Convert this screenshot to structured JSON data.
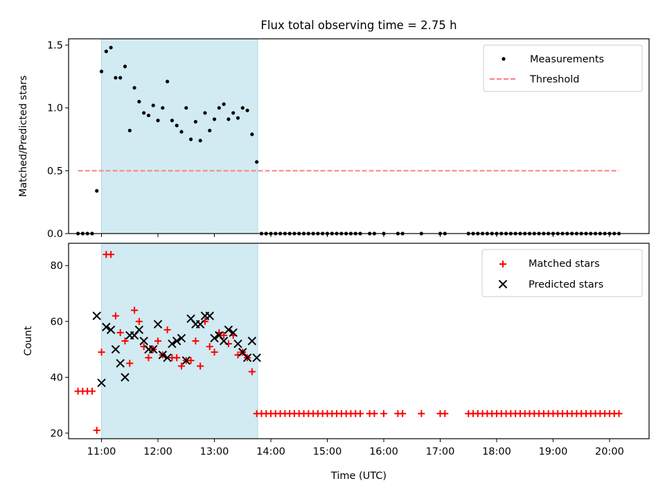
{
  "title": "Flux total observing time = 2.75 h",
  "colors": {
    "measure": "#000000",
    "threshold": "#ff7f7f",
    "matched": "#ff0000",
    "predicted": "#000000",
    "shade": "#add8e6"
  },
  "chart_data": [
    {
      "type": "scatter",
      "panel": "top",
      "title": "Flux total observing time = 2.75 h",
      "xlabel": "",
      "ylabel": "Matched/Predicted stars",
      "xlim": [
        "10:25",
        "20:42"
      ],
      "ylim": [
        0.0,
        1.55
      ],
      "yticks": [
        "0.0",
        "0.5",
        "1.0",
        "1.5"
      ],
      "shaded_interval": [
        "11:00",
        "13:46"
      ],
      "legend_position": "upper right",
      "legend": [
        "Measurements",
        "Threshold"
      ],
      "threshold": {
        "name": "Threshold",
        "value": 0.5,
        "x_range": [
          "10:35",
          "20:10"
        ]
      },
      "series": [
        {
          "name": "Measurements",
          "points": [
            [
              "10:35",
              0.0
            ],
            [
              "10:40",
              0.0
            ],
            [
              "10:45",
              0.0
            ],
            [
              "10:50",
              0.0
            ],
            [
              "10:55",
              0.34
            ],
            [
              "11:00",
              1.29
            ],
            [
              "11:05",
              1.45
            ],
            [
              "11:10",
              1.48
            ],
            [
              "11:15",
              1.24
            ],
            [
              "11:20",
              1.24
            ],
            [
              "11:25",
              1.33
            ],
            [
              "11:30",
              0.82
            ],
            [
              "11:35",
              1.16
            ],
            [
              "11:40",
              1.05
            ],
            [
              "11:45",
              0.96
            ],
            [
              "11:50",
              0.94
            ],
            [
              "11:55",
              1.02
            ],
            [
              "12:00",
              0.9
            ],
            [
              "12:05",
              1.0
            ],
            [
              "12:10",
              1.21
            ],
            [
              "12:15",
              0.9
            ],
            [
              "12:20",
              0.86
            ],
            [
              "12:25",
              0.81
            ],
            [
              "12:30",
              1.0
            ],
            [
              "12:35",
              0.75
            ],
            [
              "12:40",
              0.89
            ],
            [
              "12:45",
              0.74
            ],
            [
              "12:50",
              0.96
            ],
            [
              "12:55",
              0.82
            ],
            [
              "13:00",
              0.91
            ],
            [
              "13:05",
              1.0
            ],
            [
              "13:10",
              1.03
            ],
            [
              "13:15",
              0.91
            ],
            [
              "13:20",
              0.96
            ],
            [
              "13:25",
              0.92
            ],
            [
              "13:30",
              1.0
            ],
            [
              "13:35",
              0.98
            ],
            [
              "13:40",
              0.79
            ],
            [
              "13:45",
              0.57
            ],
            [
              "13:50",
              0.0
            ],
            [
              "13:55",
              0.0
            ],
            [
              "14:00",
              0.0
            ],
            [
              "14:05",
              0.0
            ],
            [
              "14:10",
              0.0
            ],
            [
              "14:15",
              0.0
            ],
            [
              "14:20",
              0.0
            ],
            [
              "14:25",
              0.0
            ],
            [
              "14:30",
              0.0
            ],
            [
              "14:35",
              0.0
            ],
            [
              "14:40",
              0.0
            ],
            [
              "14:45",
              0.0
            ],
            [
              "14:50",
              0.0
            ],
            [
              "14:55",
              0.0
            ],
            [
              "15:00",
              0.0
            ],
            [
              "15:05",
              0.0
            ],
            [
              "15:10",
              0.0
            ],
            [
              "15:15",
              0.0
            ],
            [
              "15:20",
              0.0
            ],
            [
              "15:25",
              0.0
            ],
            [
              "15:30",
              0.0
            ],
            [
              "15:35",
              0.0
            ],
            [
              "15:45",
              0.0
            ],
            [
              "15:50",
              0.0
            ],
            [
              "16:00",
              0.0
            ],
            [
              "16:15",
              0.0
            ],
            [
              "16:20",
              0.0
            ],
            [
              "16:40",
              0.0
            ],
            [
              "17:00",
              0.0
            ],
            [
              "17:05",
              0.0
            ],
            [
              "17:30",
              0.0
            ],
            [
              "17:35",
              0.0
            ],
            [
              "17:40",
              0.0
            ],
            [
              "17:45",
              0.0
            ],
            [
              "17:50",
              0.0
            ],
            [
              "17:55",
              0.0
            ],
            [
              "18:00",
              0.0
            ],
            [
              "18:05",
              0.0
            ],
            [
              "18:10",
              0.0
            ],
            [
              "18:15",
              0.0
            ],
            [
              "18:20",
              0.0
            ],
            [
              "18:25",
              0.0
            ],
            [
              "18:30",
              0.0
            ],
            [
              "18:35",
              0.0
            ],
            [
              "18:40",
              0.0
            ],
            [
              "18:45",
              0.0
            ],
            [
              "18:50",
              0.0
            ],
            [
              "18:55",
              0.0
            ],
            [
              "19:00",
              0.0
            ],
            [
              "19:05",
              0.0
            ],
            [
              "19:10",
              0.0
            ],
            [
              "19:15",
              0.0
            ],
            [
              "19:20",
              0.0
            ],
            [
              "19:25",
              0.0
            ],
            [
              "19:30",
              0.0
            ],
            [
              "19:35",
              0.0
            ],
            [
              "19:40",
              0.0
            ],
            [
              "19:45",
              0.0
            ],
            [
              "19:50",
              0.0
            ],
            [
              "19:55",
              0.0
            ],
            [
              "20:00",
              0.0
            ],
            [
              "20:05",
              0.0
            ],
            [
              "20:10",
              0.0
            ]
          ]
        }
      ]
    },
    {
      "type": "scatter",
      "panel": "bottom",
      "title": "",
      "xlabel": "Time (UTC)",
      "ylabel": "Count",
      "xlim": [
        "10:25",
        "20:42"
      ],
      "ylim": [
        18,
        88
      ],
      "yticks": [
        "20",
        "40",
        "60",
        "80"
      ],
      "xticks": [
        "11:00",
        "12:00",
        "13:00",
        "14:00",
        "15:00",
        "16:00",
        "17:00",
        "18:00",
        "19:00",
        "20:00"
      ],
      "shaded_interval": [
        "11:00",
        "13:46"
      ],
      "legend_position": "upper right",
      "legend": [
        "Matched stars",
        "Predicted stars"
      ],
      "series": [
        {
          "name": "Matched stars",
          "marker": "+",
          "points": [
            [
              "10:35",
              35
            ],
            [
              "10:40",
              35
            ],
            [
              "10:45",
              35
            ],
            [
              "10:50",
              35
            ],
            [
              "10:55",
              21
            ],
            [
              "11:00",
              49
            ],
            [
              "11:05",
              84
            ],
            [
              "11:10",
              84
            ],
            [
              "11:15",
              62
            ],
            [
              "11:20",
              56
            ],
            [
              "11:25",
              53
            ],
            [
              "11:30",
              45
            ],
            [
              "11:35",
              64
            ],
            [
              "11:40",
              60
            ],
            [
              "11:45",
              51
            ],
            [
              "11:50",
              47
            ],
            [
              "11:55",
              50
            ],
            [
              "12:00",
              53
            ],
            [
              "12:05",
              48
            ],
            [
              "12:10",
              57
            ],
            [
              "12:15",
              47
            ],
            [
              "12:20",
              47
            ],
            [
              "12:25",
              44
            ],
            [
              "12:30",
              46
            ],
            [
              "12:35",
              46
            ],
            [
              "12:40",
              53
            ],
            [
              "12:45",
              44
            ],
            [
              "12:50",
              60
            ],
            [
              "12:55",
              51
            ],
            [
              "13:00",
              49
            ],
            [
              "13:05",
              56
            ],
            [
              "13:10",
              55
            ],
            [
              "13:15",
              52
            ],
            [
              "13:20",
              55
            ],
            [
              "13:25",
              48
            ],
            [
              "13:30",
              49
            ],
            [
              "13:35",
              47
            ],
            [
              "13:40",
              42
            ],
            [
              "13:45",
              27
            ],
            [
              "13:50",
              27
            ],
            [
              "13:55",
              27
            ],
            [
              "14:00",
              27
            ],
            [
              "14:05",
              27
            ],
            [
              "14:10",
              27
            ],
            [
              "14:15",
              27
            ],
            [
              "14:20",
              27
            ],
            [
              "14:25",
              27
            ],
            [
              "14:30",
              27
            ],
            [
              "14:35",
              27
            ],
            [
              "14:40",
              27
            ],
            [
              "14:45",
              27
            ],
            [
              "14:50",
              27
            ],
            [
              "14:55",
              27
            ],
            [
              "15:00",
              27
            ],
            [
              "15:05",
              27
            ],
            [
              "15:10",
              27
            ],
            [
              "15:15",
              27
            ],
            [
              "15:20",
              27
            ],
            [
              "15:25",
              27
            ],
            [
              "15:30",
              27
            ],
            [
              "15:35",
              27
            ],
            [
              "15:45",
              27
            ],
            [
              "15:50",
              27
            ],
            [
              "16:00",
              27
            ],
            [
              "16:15",
              27
            ],
            [
              "16:20",
              27
            ],
            [
              "16:40",
              27
            ],
            [
              "17:00",
              27
            ],
            [
              "17:05",
              27
            ],
            [
              "17:30",
              27
            ],
            [
              "17:35",
              27
            ],
            [
              "17:40",
              27
            ],
            [
              "17:45",
              27
            ],
            [
              "17:50",
              27
            ],
            [
              "17:55",
              27
            ],
            [
              "18:00",
              27
            ],
            [
              "18:05",
              27
            ],
            [
              "18:10",
              27
            ],
            [
              "18:15",
              27
            ],
            [
              "18:20",
              27
            ],
            [
              "18:25",
              27
            ],
            [
              "18:30",
              27
            ],
            [
              "18:35",
              27
            ],
            [
              "18:40",
              27
            ],
            [
              "18:45",
              27
            ],
            [
              "18:50",
              27
            ],
            [
              "18:55",
              27
            ],
            [
              "19:00",
              27
            ],
            [
              "19:05",
              27
            ],
            [
              "19:10",
              27
            ],
            [
              "19:15",
              27
            ],
            [
              "19:20",
              27
            ],
            [
              "19:25",
              27
            ],
            [
              "19:30",
              27
            ],
            [
              "19:35",
              27
            ],
            [
              "19:40",
              27
            ],
            [
              "19:45",
              27
            ],
            [
              "19:50",
              27
            ],
            [
              "19:55",
              27
            ],
            [
              "20:00",
              27
            ],
            [
              "20:05",
              27
            ],
            [
              "20:10",
              27
            ]
          ]
        },
        {
          "name": "Predicted stars",
          "marker": "x",
          "points": [
            [
              "10:55",
              62
            ],
            [
              "11:00",
              38
            ],
            [
              "11:05",
              58
            ],
            [
              "11:10",
              57
            ],
            [
              "11:15",
              50
            ],
            [
              "11:20",
              45
            ],
            [
              "11:25",
              40
            ],
            [
              "11:30",
              55
            ],
            [
              "11:35",
              55
            ],
            [
              "11:40",
              57
            ],
            [
              "11:45",
              53
            ],
            [
              "11:50",
              50
            ],
            [
              "11:55",
              50
            ],
            [
              "12:00",
              59
            ],
            [
              "12:05",
              48
            ],
            [
              "12:10",
              47
            ],
            [
              "12:15",
              52
            ],
            [
              "12:20",
              53
            ],
            [
              "12:25",
              54
            ],
            [
              "12:30",
              46
            ],
            [
              "12:35",
              61
            ],
            [
              "12:40",
              59
            ],
            [
              "12:45",
              59
            ],
            [
              "12:50",
              62
            ],
            [
              "12:55",
              62
            ],
            [
              "13:00",
              54
            ],
            [
              "13:05",
              55
            ],
            [
              "13:10",
              53
            ],
            [
              "13:15",
              57
            ],
            [
              "13:20",
              56
            ],
            [
              "13:25",
              52
            ],
            [
              "13:30",
              49
            ],
            [
              "13:35",
              47
            ],
            [
              "13:40",
              53
            ],
            [
              "13:45",
              47
            ]
          ]
        }
      ]
    }
  ]
}
